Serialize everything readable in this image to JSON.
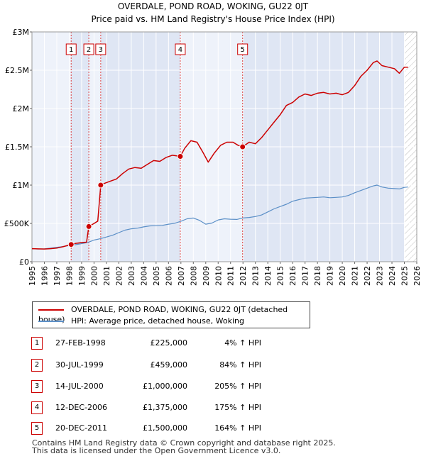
{
  "chart_data": {
    "type": "line",
    "title": "OVERDALE, POND ROAD, WOKING, GU22 0JT",
    "subtitle": "Price paid vs. HM Land Registry's House Price Index (HPI)",
    "xlim": [
      1995,
      2026
    ],
    "ylim": [
      0,
      3000000
    ],
    "y_ticks": [
      0,
      500000,
      1000000,
      1500000,
      2000000,
      2500000,
      3000000
    ],
    "y_tick_labels": [
      "£0",
      "£500K",
      "£1M",
      "£1.5M",
      "£2M",
      "£2.5M",
      "£3M"
    ],
    "x_ticks": [
      "1995",
      "1996",
      "1997",
      "1998",
      "1999",
      "2000",
      "2001",
      "2002",
      "2003",
      "2004",
      "2005",
      "2006",
      "2007",
      "2008",
      "2009",
      "2010",
      "2011",
      "2012",
      "2013",
      "2014",
      "2015",
      "2016",
      "2017",
      "2018",
      "2019",
      "2020",
      "2021",
      "2022",
      "2023",
      "2024",
      "2025",
      "2026"
    ],
    "grid": true,
    "hatched_from": 2025.0,
    "ownership_bands": [
      [
        1998.16,
        1999.58
      ],
      [
        1999.58,
        2000.54
      ],
      [
        2000.54,
        2006.95
      ],
      [
        2006.95,
        2011.97
      ],
      [
        2011.97,
        2025.0
      ]
    ],
    "series": [
      {
        "name": "OVERDALE, POND ROAD, WOKING, GU22 0JT (detached house)",
        "color": "#cc0000",
        "points": [
          [
            1995.0,
            170000
          ],
          [
            1995.5,
            168000
          ],
          [
            1996.0,
            166000
          ],
          [
            1996.5,
            170000
          ],
          [
            1997.0,
            178000
          ],
          [
            1997.5,
            195000
          ],
          [
            1998.16,
            225000
          ],
          [
            1998.5,
            238000
          ],
          [
            1999.0,
            250000
          ],
          [
            1999.4,
            255000
          ],
          [
            1999.58,
            459000
          ],
          [
            1999.9,
            490000
          ],
          [
            2000.3,
            530000
          ],
          [
            2000.54,
            1000000
          ],
          [
            2000.8,
            1020000
          ],
          [
            2001.3,
            1050000
          ],
          [
            2001.8,
            1080000
          ],
          [
            2002.3,
            1150000
          ],
          [
            2002.8,
            1210000
          ],
          [
            2003.3,
            1230000
          ],
          [
            2003.8,
            1220000
          ],
          [
            2004.3,
            1270000
          ],
          [
            2004.8,
            1320000
          ],
          [
            2005.3,
            1310000
          ],
          [
            2005.8,
            1360000
          ],
          [
            2006.3,
            1390000
          ],
          [
            2006.95,
            1375000
          ],
          [
            2007.3,
            1480000
          ],
          [
            2007.8,
            1580000
          ],
          [
            2008.3,
            1560000
          ],
          [
            2008.8,
            1420000
          ],
          [
            2009.2,
            1300000
          ],
          [
            2009.7,
            1420000
          ],
          [
            2010.2,
            1520000
          ],
          [
            2010.7,
            1560000
          ],
          [
            2011.2,
            1560000
          ],
          [
            2011.6,
            1520000
          ],
          [
            2011.97,
            1500000
          ],
          [
            2012.5,
            1560000
          ],
          [
            2013.0,
            1540000
          ],
          [
            2013.5,
            1620000
          ],
          [
            2014.0,
            1720000
          ],
          [
            2014.5,
            1820000
          ],
          [
            2015.0,
            1920000
          ],
          [
            2015.5,
            2040000
          ],
          [
            2016.0,
            2080000
          ],
          [
            2016.5,
            2150000
          ],
          [
            2017.0,
            2190000
          ],
          [
            2017.5,
            2170000
          ],
          [
            2018.0,
            2200000
          ],
          [
            2018.5,
            2210000
          ],
          [
            2019.0,
            2190000
          ],
          [
            2019.5,
            2200000
          ],
          [
            2020.0,
            2180000
          ],
          [
            2020.5,
            2210000
          ],
          [
            2021.0,
            2300000
          ],
          [
            2021.5,
            2420000
          ],
          [
            2022.0,
            2500000
          ],
          [
            2022.5,
            2600000
          ],
          [
            2022.8,
            2620000
          ],
          [
            2023.2,
            2560000
          ],
          [
            2023.7,
            2540000
          ],
          [
            2024.2,
            2520000
          ],
          [
            2024.6,
            2460000
          ],
          [
            2025.0,
            2540000
          ],
          [
            2025.3,
            2540000
          ]
        ]
      },
      {
        "name": "HPI: Average price, detached house, Woking",
        "color": "#5b8fc7",
        "points": [
          [
            1995.0,
            170000
          ],
          [
            1995.5,
            166000
          ],
          [
            1996.0,
            168000
          ],
          [
            1996.5,
            178000
          ],
          [
            1997.0,
            188000
          ],
          [
            1997.5,
            198000
          ],
          [
            1998.0,
            212000
          ],
          [
            1998.5,
            222000
          ],
          [
            1999.0,
            236000
          ],
          [
            1999.5,
            252000
          ],
          [
            2000.0,
            282000
          ],
          [
            2000.5,
            300000
          ],
          [
            2001.0,
            322000
          ],
          [
            2001.5,
            345000
          ],
          [
            2002.0,
            380000
          ],
          [
            2002.5,
            412000
          ],
          [
            2003.0,
            430000
          ],
          [
            2003.5,
            438000
          ],
          [
            2004.0,
            455000
          ],
          [
            2004.5,
            468000
          ],
          [
            2005.0,
            470000
          ],
          [
            2005.5,
            474000
          ],
          [
            2006.0,
            490000
          ],
          [
            2006.5,
            502000
          ],
          [
            2006.95,
            525000
          ],
          [
            2007.5,
            560000
          ],
          [
            2008.0,
            570000
          ],
          [
            2008.5,
            540000
          ],
          [
            2009.0,
            490000
          ],
          [
            2009.5,
            505000
          ],
          [
            2010.0,
            545000
          ],
          [
            2010.5,
            560000
          ],
          [
            2011.0,
            555000
          ],
          [
            2011.5,
            552000
          ],
          [
            2011.97,
            570000
          ],
          [
            2012.5,
            578000
          ],
          [
            2013.0,
            590000
          ],
          [
            2013.5,
            610000
          ],
          [
            2014.0,
            650000
          ],
          [
            2014.5,
            690000
          ],
          [
            2015.0,
            720000
          ],
          [
            2015.5,
            750000
          ],
          [
            2016.0,
            790000
          ],
          [
            2016.5,
            810000
          ],
          [
            2017.0,
            830000
          ],
          [
            2017.5,
            835000
          ],
          [
            2018.0,
            840000
          ],
          [
            2018.5,
            845000
          ],
          [
            2019.0,
            835000
          ],
          [
            2019.5,
            840000
          ],
          [
            2020.0,
            845000
          ],
          [
            2020.5,
            865000
          ],
          [
            2021.0,
            900000
          ],
          [
            2021.5,
            930000
          ],
          [
            2022.0,
            960000
          ],
          [
            2022.5,
            990000
          ],
          [
            2022.8,
            1000000
          ],
          [
            2023.2,
            975000
          ],
          [
            2023.7,
            960000
          ],
          [
            2024.2,
            955000
          ],
          [
            2024.6,
            950000
          ],
          [
            2025.0,
            970000
          ],
          [
            2025.3,
            975000
          ]
        ]
      }
    ],
    "sales": [
      {
        "id": "1",
        "date": "27-FEB-1998",
        "x": 1998.16,
        "price_value": 225000,
        "price": "£225,000",
        "hpi": "4% ↑ HPI"
      },
      {
        "id": "2",
        "date": "30-JUL-1999",
        "x": 1999.58,
        "price_value": 459000,
        "price": "£459,000",
        "hpi": "84% ↑ HPI"
      },
      {
        "id": "3",
        "date": "14-JUL-2000",
        "x": 2000.54,
        "price_value": 1000000,
        "price": "£1,000,000",
        "hpi": "205% ↑ HPI"
      },
      {
        "id": "4",
        "date": "12-DEC-2006",
        "x": 2006.95,
        "price_value": 1375000,
        "price": "£1,375,000",
        "hpi": "175% ↑ HPI"
      },
      {
        "id": "5",
        "date": "20-DEC-2011",
        "x": 2011.97,
        "price_value": 1500000,
        "price": "£1,500,000",
        "hpi": "164% ↑ HPI"
      }
    ]
  },
  "legend": {
    "property_label": "OVERDALE, POND ROAD, WOKING, GU22 0JT (detached house)",
    "hpi_label": "HPI: Average price, detached house, Woking"
  },
  "footer": {
    "line1": "Contains HM Land Registry data © Crown copyright and database right 2025.",
    "line2": "This data is licensed under the Open Government Licence v3.0."
  },
  "colors": {
    "property": "#cc0000",
    "hpi": "#5b8fc7",
    "band": "#e8eef8",
    "grid": "#ffffff",
    "plot_bg": "#eef2fa"
  }
}
